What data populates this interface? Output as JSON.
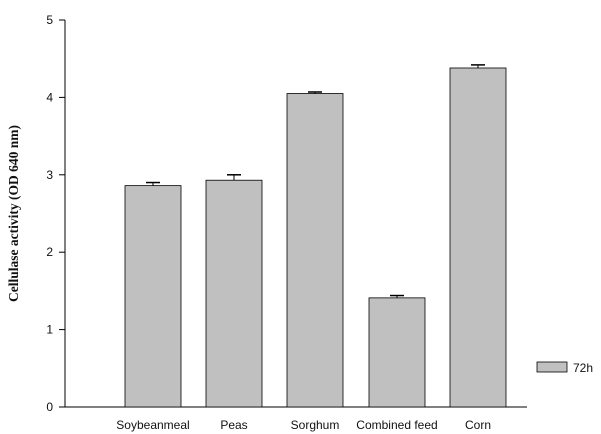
{
  "chart_data": {
    "type": "bar",
    "title": "",
    "xlabel": "",
    "ylabel": "Cellulase activity (OD 640 nm)",
    "ylim": [
      0,
      5
    ],
    "yticks": [
      0,
      1,
      2,
      3,
      4,
      5
    ],
    "categories": [
      "Soybeanmeal",
      "Peas",
      "Sorghum",
      "Combined feed",
      "Corn"
    ],
    "series": [
      {
        "name": "72h",
        "values": [
          2.86,
          2.93,
          4.05,
          1.41,
          4.38
        ],
        "errors": [
          0.04,
          0.07,
          0.02,
          0.03,
          0.04
        ],
        "color": "#c0c0c0"
      }
    ],
    "legend_position": "right",
    "grid": false,
    "error_bars": true
  }
}
